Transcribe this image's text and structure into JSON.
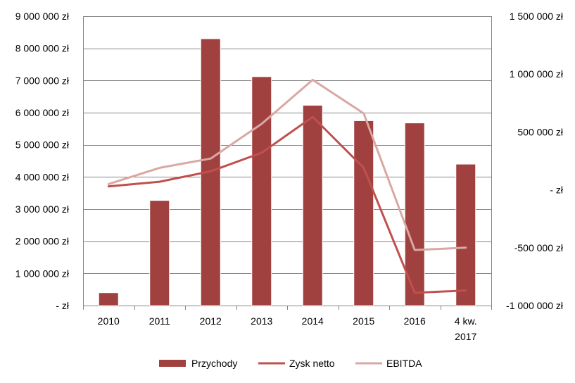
{
  "chart_data": {
    "type": "bar",
    "categories": [
      "2010",
      "2011",
      "2012",
      "2013",
      "2014",
      "2015",
      "2016",
      "4 kw. 2017"
    ],
    "category_lines": [
      [
        "2010"
      ],
      [
        "2011"
      ],
      [
        "2012"
      ],
      [
        "2013"
      ],
      [
        "2014"
      ],
      [
        "2015"
      ],
      [
        "2016"
      ],
      [
        "4 kw.",
        "2017"
      ]
    ],
    "series": [
      {
        "name": "Przychody",
        "type": "bar",
        "axis": "left",
        "color": "#A0403F",
        "values": [
          400000,
          3270000,
          8300000,
          7120000,
          6230000,
          5750000,
          5680000,
          4400000
        ]
      },
      {
        "name": "Zysk netto",
        "type": "line",
        "axis": "right",
        "color": "#C0504D",
        "values": [
          30000,
          70000,
          160000,
          320000,
          630000,
          190000,
          -890000,
          -870000
        ]
      },
      {
        "name": "EBITDA",
        "type": "line",
        "axis": "right",
        "color": "#D9A8A4",
        "values": [
          50000,
          190000,
          270000,
          570000,
          950000,
          660000,
          -520000,
          -500000
        ]
      }
    ],
    "left_axis": {
      "ylim": [
        0,
        9000000
      ],
      "tick_values": [
        0,
        1000000,
        2000000,
        3000000,
        4000000,
        5000000,
        6000000,
        7000000,
        8000000,
        9000000
      ],
      "tick_labels": [
        "-   zł",
        "1 000 000 zł",
        "2 000 000 zł",
        "3 000 000 zł",
        "4 000 000 zł",
        "5 000 000 zł",
        "6 000 000 zł",
        "7 000 000 zł",
        "8 000 000 zł",
        "9 000 000 zł"
      ]
    },
    "right_axis": {
      "ylim": [
        -1000000,
        1500000
      ],
      "tick_values": [
        -1000000,
        -500000,
        0,
        500000,
        1000000,
        1500000
      ],
      "tick_labels": [
        "-1 000 000 zł",
        "-500 000 zł",
        "-   zł",
        "500 000 zł",
        "1 000 000 zł",
        "1 500 000 zł"
      ]
    },
    "grid": true,
    "legend_position": "bottom",
    "gridline_color": "#868686"
  }
}
